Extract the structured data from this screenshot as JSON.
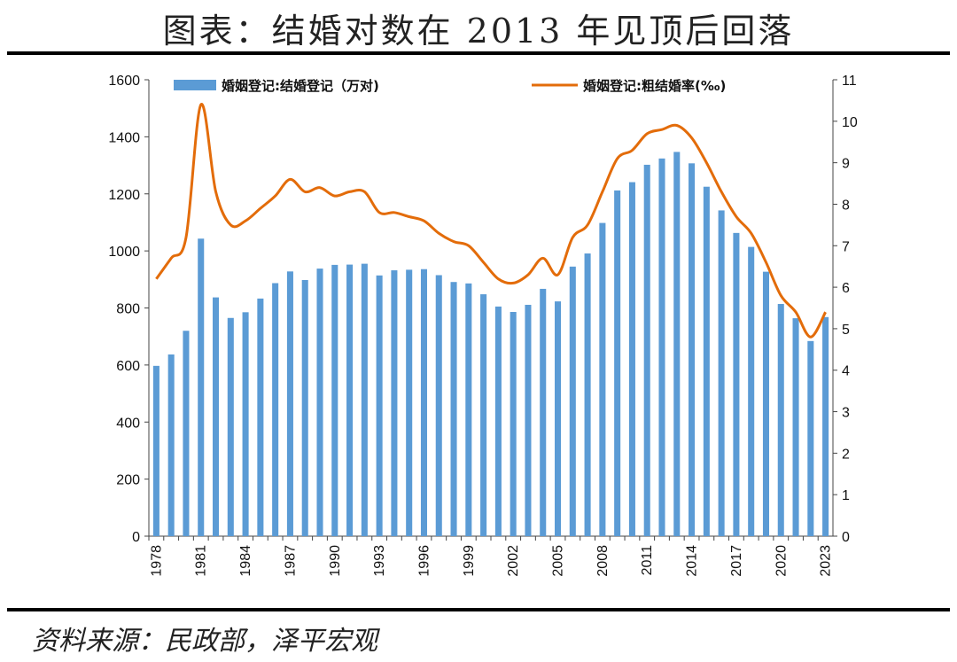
{
  "title": "图表：结婚对数在 2013 年见顶后回落",
  "source": "资料来源：民政部，泽平宏观",
  "chart_data": {
    "type": "bar+line",
    "x": [
      1978,
      1979,
      1980,
      1981,
      1982,
      1983,
      1984,
      1985,
      1986,
      1987,
      1988,
      1989,
      1990,
      1991,
      1992,
      1993,
      1994,
      1995,
      1996,
      1997,
      1998,
      1999,
      2000,
      2001,
      2002,
      2003,
      2004,
      2005,
      2006,
      2007,
      2008,
      2009,
      2010,
      2011,
      2012,
      2013,
      2014,
      2015,
      2016,
      2017,
      2018,
      2019,
      2020,
      2021,
      2022,
      2023
    ],
    "x_tick_labels": [
      "1978",
      "1981",
      "1984",
      "1987",
      "1990",
      "1993",
      "1996",
      "1999",
      "2002",
      "2005",
      "2008",
      "2011",
      "2014",
      "2017",
      "2020",
      "2023"
    ],
    "series": [
      {
        "name": "婚姻登记:结婚登记（万对)",
        "type": "bar",
        "axis": "left",
        "color": "#5b9bd5",
        "values": [
          597,
          637,
          720,
          1043,
          837,
          765,
          785,
          833,
          887,
          928,
          898,
          938,
          951,
          952,
          955,
          914,
          932,
          934,
          936,
          915,
          891,
          886,
          848,
          805,
          786,
          811,
          867,
          823,
          945,
          991,
          1098,
          1212,
          1241,
          1302,
          1324,
          1347,
          1307,
          1225,
          1142,
          1063,
          1014,
          927,
          814,
          764,
          684,
          768
        ]
      },
      {
        "name": "婚姻登记:粗结婚率(‰)",
        "type": "line",
        "axis": "right",
        "color": "#e36c0a",
        "values": [
          6.2,
          6.7,
          7.2,
          10.4,
          8.3,
          7.5,
          7.6,
          7.9,
          8.2,
          8.6,
          8.3,
          8.4,
          8.2,
          8.3,
          8.3,
          7.8,
          7.8,
          7.7,
          7.6,
          7.3,
          7.1,
          7.0,
          6.6,
          6.2,
          6.1,
          6.3,
          6.7,
          6.3,
          7.2,
          7.5,
          8.3,
          9.1,
          9.3,
          9.7,
          9.8,
          9.9,
          9.6,
          9.0,
          8.3,
          7.7,
          7.3,
          6.6,
          5.8,
          5.4,
          4.8,
          5.4
        ]
      }
    ],
    "y_left": {
      "lim": [
        0,
        1600
      ],
      "ticks": [
        "0",
        "200",
        "400",
        "600",
        "800",
        "1000",
        "1200",
        "1400",
        "1600"
      ]
    },
    "y_right": {
      "lim": [
        0,
        11
      ],
      "ticks": [
        "0",
        "1",
        "2",
        "3",
        "4",
        "5",
        "6",
        "7",
        "8",
        "9",
        "10",
        "11"
      ]
    },
    "legend": "top"
  }
}
